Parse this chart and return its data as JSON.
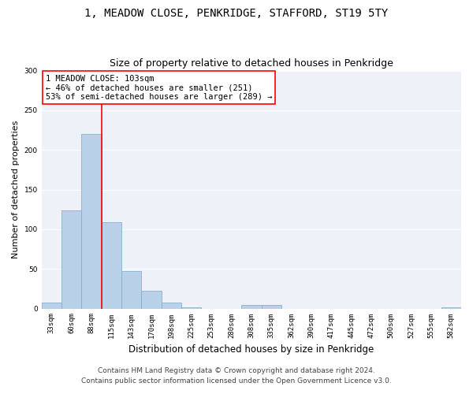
{
  "title": "1, MEADOW CLOSE, PENKRIDGE, STAFFORD, ST19 5TY",
  "subtitle": "Size of property relative to detached houses in Penkridge",
  "xlabel": "Distribution of detached houses by size in Penkridge",
  "ylabel": "Number of detached properties",
  "categories": [
    "33sqm",
    "60sqm",
    "88sqm",
    "115sqm",
    "143sqm",
    "170sqm",
    "198sqm",
    "225sqm",
    "253sqm",
    "280sqm",
    "308sqm",
    "335sqm",
    "362sqm",
    "390sqm",
    "417sqm",
    "445sqm",
    "472sqm",
    "500sqm",
    "527sqm",
    "555sqm",
    "582sqm"
  ],
  "values": [
    8,
    124,
    220,
    109,
    47,
    22,
    8,
    2,
    0,
    0,
    5,
    5,
    0,
    0,
    0,
    0,
    0,
    0,
    0,
    0,
    2
  ],
  "bar_color": "#b8d0e8",
  "bar_edge_color": "#7aaac8",
  "vline_color": "red",
  "vline_x_index": 2,
  "annotation_text": "1 MEADOW CLOSE: 103sqm\n← 46% of detached houses are smaller (251)\n53% of semi-detached houses are larger (289) →",
  "annotation_box_color": "white",
  "annotation_box_edge_color": "red",
  "ylim": [
    0,
    300
  ],
  "yticks": [
    0,
    50,
    100,
    150,
    200,
    250,
    300
  ],
  "background_color": "#eef2f8",
  "grid_color": "white",
  "footer_line1": "Contains HM Land Registry data © Crown copyright and database right 2024.",
  "footer_line2": "Contains public sector information licensed under the Open Government Licence v3.0.",
  "title_fontsize": 10,
  "subtitle_fontsize": 9,
  "xlabel_fontsize": 8.5,
  "ylabel_fontsize": 8,
  "tick_fontsize": 6.5,
  "annotation_fontsize": 7.5,
  "footer_fontsize": 6.5
}
